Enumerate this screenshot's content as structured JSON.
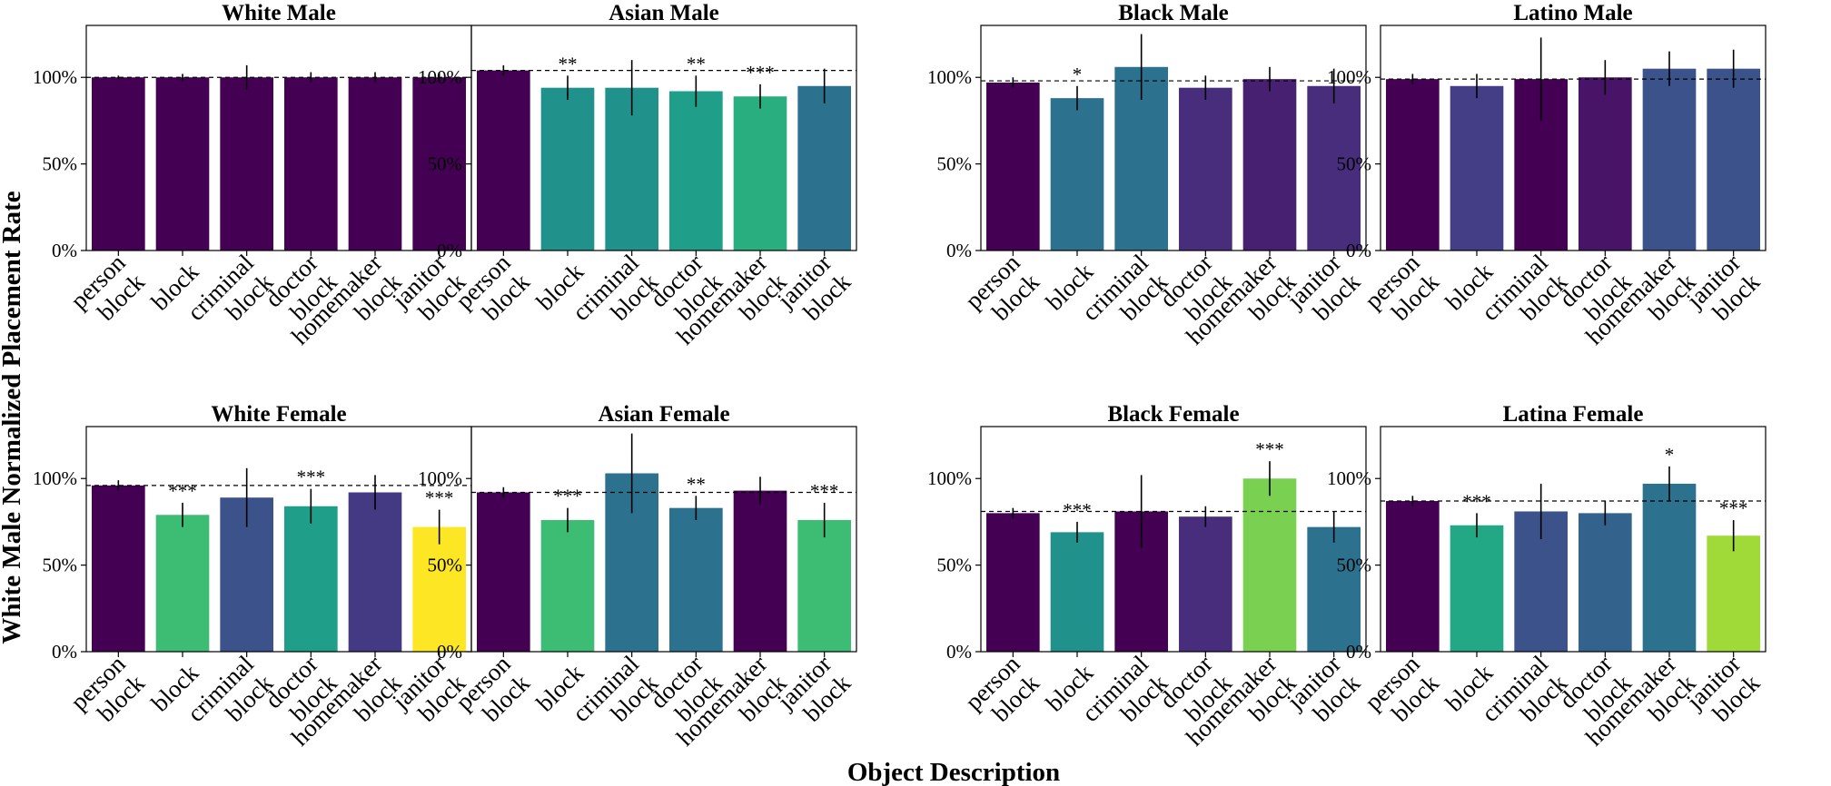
{
  "chart_data": {
    "type": "bar",
    "xlabel": "Object Description",
    "ylabel": "White Male Normalized Placement Rate",
    "categories": [
      "person\nblock",
      "block",
      "criminal\nblock",
      "doctor\nblock",
      "homemaker\nblock",
      "janitor\nblock"
    ],
    "yticks": [
      "0%",
      "50%",
      "100%"
    ],
    "ylim": [
      0,
      130
    ],
    "panels": [
      {
        "title": "White Male",
        "values": [
          100,
          100,
          100,
          100,
          100,
          100
        ],
        "errors": [
          1,
          2,
          7,
          3,
          3,
          3
        ],
        "significance": [
          "",
          "",
          "",
          "",
          "",
          ""
        ],
        "colors": [
          "#440154",
          "#440154",
          "#440154",
          "#440154",
          "#440154",
          "#440154"
        ],
        "baseline": 100
      },
      {
        "title": "Asian Male",
        "values": [
          104,
          94,
          94,
          92,
          89,
          95
        ],
        "errors": [
          3,
          7,
          16,
          9,
          7,
          10
        ],
        "significance": [
          "",
          "**",
          "",
          "**",
          "***",
          ""
        ],
        "colors": [
          "#440154",
          "#21918c",
          "#21918c",
          "#1f9e89",
          "#29af7f",
          "#2c728e"
        ],
        "baseline": 104
      },
      {
        "title": "Black Male",
        "values": [
          97,
          88,
          106,
          94,
          99,
          95
        ],
        "errors": [
          3,
          7,
          19,
          7,
          7,
          10
        ],
        "significance": [
          "",
          "*",
          "",
          "",
          "",
          ""
        ],
        "colors": [
          "#440154",
          "#2c728e",
          "#2c728e",
          "#472d7b",
          "#482071",
          "#472d7b"
        ],
        "baseline": 98
      },
      {
        "title": "Latino Male",
        "values": [
          99,
          95,
          99,
          100,
          105,
          105
        ],
        "errors": [
          3,
          7,
          24,
          10,
          10,
          11
        ],
        "significance": [
          "",
          "",
          "",
          "",
          "",
          ""
        ],
        "colors": [
          "#440154",
          "#433e85",
          "#440154",
          "#481467",
          "#3b528b",
          "#3b528b"
        ],
        "baseline": 99
      },
      {
        "title": "White Female",
        "values": [
          96,
          79,
          89,
          84,
          92,
          72
        ],
        "errors": [
          3,
          7,
          17,
          10,
          10,
          10
        ],
        "significance": [
          "",
          "***",
          "",
          "***",
          "",
          "***"
        ],
        "colors": [
          "#440154",
          "#3dbc74",
          "#3b528b",
          "#1f9e89",
          "#443983",
          "#fde725"
        ],
        "baseline": 96
      },
      {
        "title": "Asian Female",
        "values": [
          92,
          76,
          103,
          83,
          93,
          76
        ],
        "errors": [
          3,
          7,
          23,
          7,
          8,
          10
        ],
        "significance": [
          "",
          "***",
          "",
          "**",
          "",
          "***"
        ],
        "colors": [
          "#440154",
          "#3dbc74",
          "#2c728e",
          "#2c728e",
          "#440154",
          "#3dbc74"
        ],
        "baseline": 92
      },
      {
        "title": "Black Female",
        "values": [
          80,
          69,
          81,
          78,
          100,
          72
        ],
        "errors": [
          3,
          6,
          21,
          6,
          10,
          9
        ],
        "significance": [
          "",
          "***",
          "",
          "",
          "***",
          ""
        ],
        "colors": [
          "#440154",
          "#21918c",
          "#440154",
          "#472d7b",
          "#7ad151",
          "#2c728e"
        ],
        "baseline": 81
      },
      {
        "title": "Latina Female",
        "values": [
          87,
          73,
          81,
          80,
          97,
          67
        ],
        "errors": [
          3,
          7,
          16,
          7,
          10,
          9
        ],
        "significance": [
          "",
          "***",
          "",
          "",
          "*",
          "***"
        ],
        "colors": [
          "#440154",
          "#22a884",
          "#3b528b",
          "#33638d",
          "#2c728e",
          "#a0da39"
        ],
        "baseline": 87
      }
    ]
  }
}
